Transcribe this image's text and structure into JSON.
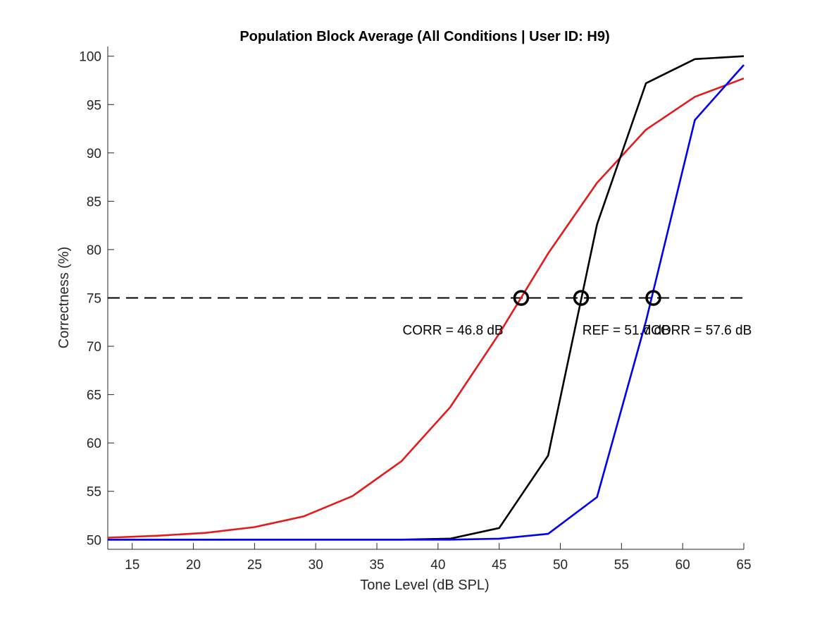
{
  "chart_data": {
    "type": "line",
    "title": "Population Block Average (All Conditions | User ID: H9)",
    "xlabel": "Tone Level (dB SPL)",
    "ylabel": "Correctness (%)",
    "xlim": [
      13,
      65
    ],
    "ylim": [
      49,
      101
    ],
    "xticks": [
      15,
      20,
      25,
      30,
      35,
      40,
      45,
      50,
      55,
      60,
      65
    ],
    "yticks": [
      50,
      55,
      60,
      65,
      70,
      75,
      80,
      85,
      90,
      95,
      100
    ],
    "grid": false,
    "reference_line": {
      "y": 75,
      "style": "dashed",
      "color": "#000000"
    },
    "series": [
      {
        "color": "#e41a1c",
        "x": [
          13,
          17,
          21,
          25,
          29,
          33,
          37,
          41,
          45,
          49,
          53,
          57,
          61,
          65
        ],
        "y": [
          50.2,
          50.4,
          50.7,
          51.3,
          52.4,
          54.5,
          58.1,
          63.7,
          71.3,
          79.6,
          86.9,
          92.4,
          95.8,
          97.7
        ]
      },
      {
        "color": "#000000",
        "x": [
          13,
          17,
          21,
          25,
          29,
          33,
          37,
          41,
          45,
          49,
          53,
          57,
          61,
          65
        ],
        "y": [
          50,
          50,
          50,
          50,
          50,
          50,
          50,
          50.1,
          51.2,
          58.7,
          82.6,
          97.2,
          99.7,
          100
        ]
      },
      {
        "color": "#0000ee",
        "x": [
          13,
          17,
          21,
          25,
          29,
          33,
          37,
          41,
          45,
          49,
          53,
          57,
          61,
          65
        ],
        "y": [
          50,
          50,
          50,
          50,
          50,
          50,
          50,
          50,
          50.1,
          50.6,
          54.4,
          72.6,
          93.4,
          99.1
        ]
      }
    ],
    "annotations": [
      {
        "text": "CORR = 46.8 dB",
        "x": 46.8,
        "y": 75,
        "label_x": 37.1,
        "label_y": 71.2,
        "color": "#e41a1c"
      },
      {
        "text": "REF = 51.7 dB",
        "x": 51.7,
        "y": 75,
        "label_x": 51.8,
        "label_y": 71.2,
        "color": "#000000"
      },
      {
        "text": "dCORR = 57.6 dB",
        "x": 57.6,
        "y": 75,
        "label_x": 56.8,
        "label_y": 71.2,
        "color": "#0000ee"
      }
    ]
  }
}
